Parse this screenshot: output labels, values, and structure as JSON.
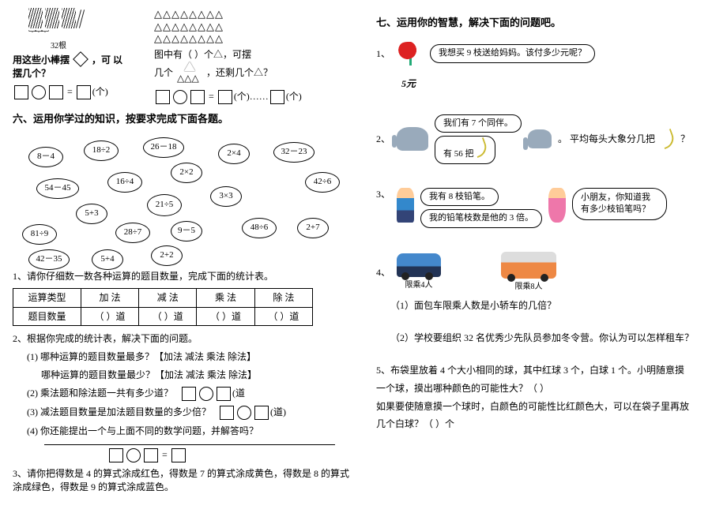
{
  "left": {
    "sticks_count": "32根",
    "sticks_q": "用这些小棒摆",
    "sticks_q2": "，可 以",
    "sticks_q3": "摆几个？",
    "unit1": "(个)",
    "tri_total": "图中有（  ）个△，可摆",
    "tri_q": "几个",
    "tri_rest": "，还剩几个△？",
    "unit2": "(个)……",
    "unit3": "(个)",
    "h6": "六、运用你学过的知识，按要求完成下面各题。",
    "bubbles": [
      "8－4",
      "18÷2",
      "26－18",
      "2×2",
      "2×4",
      "32－23",
      "54－45",
      "16÷4",
      "42÷6",
      "5+3",
      "21÷5",
      "3×3",
      "81÷9",
      "28÷7",
      "9－5",
      "48÷6",
      "2+7",
      "42－35",
      "5+4",
      "2+2"
    ],
    "q1": "1、请你仔细数一数各种运算的题目数量，完成下面的统计表。",
    "tbl_h": [
      "运算类型",
      "加 法",
      "减 法",
      "乘 法",
      "除 法"
    ],
    "tbl_r": [
      "题目数量",
      "（    ）道",
      "（    ）道",
      "（    ）道",
      "（    ）道"
    ],
    "q2": "2、根据你完成的统计表，解决下面的问题。",
    "q2_1a": "(1) 哪种运算的题目数量最多？【加法  减法   乘法   除法】",
    "q2_1b": "哪种运算的题目数量最少？【加法  减法   乘法   除法】",
    "q2_2": "(2) 乘法题和除法题一共有多少道？",
    "unit_dao": "(道",
    "q2_3": "(3) 减法题目数量是加法题目数量的多少倍？",
    "unit_dao2": "(道)",
    "q2_4": "(4) 你还能提出一个与上面不同的数学问题，并解答吗？",
    "q3": "3、请你把得数是 4 的算式涂成红色，得数是 7 的算式涂成黄色，得数是 8 的算式涂成绿色，得数是 9 的算式涂成蓝色。"
  },
  "right": {
    "h7": "七、运用你的智慧，解决下面的问题吧。",
    "q1_bub": "我想买 9 枝送给妈妈。该付多少元呢？",
    "q1_price": "5元",
    "q2_bub1": "我们有 7 个同伴。",
    "q2_bub2": "有 56 把",
    "q2_txt": "。  平均每头大象分几把",
    "q3_bub1": "我有 8 枝铅笔。",
    "q3_bub2": "我的铅笔枝数是他的 3 倍。",
    "q3_think": "小朋友，你知道我有多少枝铅笔吗？",
    "car_cap": "限乘4人",
    "van_cap": "限乘8人",
    "q4_1": "（1）面包车限乘人数是小轿车的几倍？",
    "q4_2": "（2）学校要组织 32 名优秀少先队员参加冬令营。你认为可以怎样租车？",
    "q5a": "5、布袋里放着 4 个大小相同的球，其中红球 3 个，白球 1 个。小明随意摸",
    "q5b": "一个球，摸出哪种颜色的可能性大？（          ）",
    "q5c": "如果要使随意摸一个球时，白颜色的可能性比红颜色大，可以在袋子里再放",
    "q5d": "几个白球？（             ）个"
  },
  "bpos": [
    [
      20,
      20,
      44,
      26
    ],
    [
      90,
      12,
      44,
      26
    ],
    [
      165,
      8,
      52,
      26
    ],
    [
      200,
      40,
      40,
      26
    ],
    [
      260,
      16,
      40,
      26
    ],
    [
      330,
      14,
      52,
      26
    ],
    [
      30,
      60,
      54,
      26
    ],
    [
      120,
      52,
      44,
      26
    ],
    [
      370,
      52,
      44,
      26
    ],
    [
      80,
      92,
      40,
      26
    ],
    [
      170,
      80,
      44,
      28
    ],
    [
      250,
      70,
      40,
      26
    ],
    [
      12,
      118,
      44,
      26
    ],
    [
      130,
      116,
      44,
      26
    ],
    [
      200,
      114,
      40,
      26
    ],
    [
      290,
      110,
      44,
      26
    ],
    [
      360,
      110,
      40,
      26
    ],
    [
      20,
      150,
      52,
      26
    ],
    [
      100,
      150,
      40,
      26
    ],
    [
      175,
      145,
      40,
      26
    ]
  ]
}
